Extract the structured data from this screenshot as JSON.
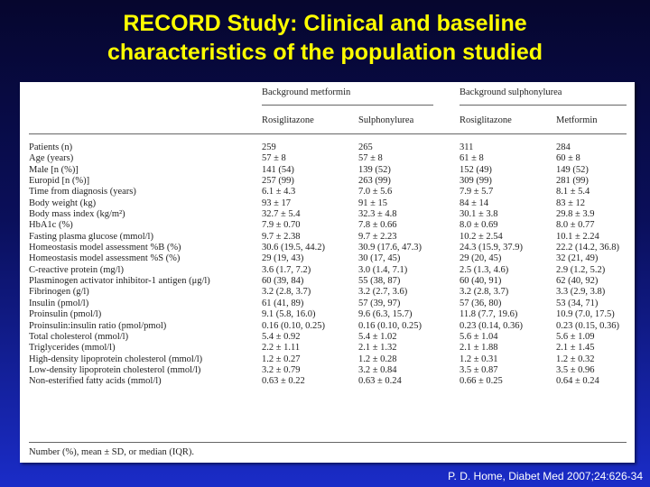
{
  "title": {
    "line1": "RECORD Study:  Clinical and baseline",
    "line2": "characteristics of the population studied"
  },
  "table": {
    "group_headers": [
      "Background metformin",
      "Background sulphonylurea"
    ],
    "column_headers": [
      "Rosiglitazone",
      "Sulphonylurea",
      "Rosiglitazone",
      "Metformin"
    ],
    "rows": [
      [
        "Patients (n)",
        "259",
        "265",
        "311",
        "284"
      ],
      [
        "Age (years)",
        "57 ± 8",
        "57 ± 8",
        "61 ± 8",
        "60 ± 8"
      ],
      [
        "Male [n (%)]",
        "141 (54)",
        "139 (52)",
        "152 (49)",
        "149 (52)"
      ],
      [
        "Europid [n (%)]",
        "257 (99)",
        "263 (99)",
        "309 (99)",
        "281 (99)"
      ],
      [
        "Time from diagnosis (years)",
        "6.1 ± 4.3",
        "7.0 ± 5.6",
        "7.9 ± 5.7",
        "8.1 ± 5.4"
      ],
      [
        "Body weight (kg)",
        "93 ± 17",
        "91 ± 15",
        "84 ± 14",
        "83 ± 12"
      ],
      [
        "Body mass index (kg/m²)",
        "32.7 ± 5.4",
        "32.3 ± 4.8",
        "30.1 ± 3.8",
        "29.8 ± 3.9"
      ],
      [
        "HbA1c (%)",
        "7.9 ± 0.70",
        "7.8 ± 0.66",
        "8.0 ± 0.69",
        "8.0 ± 0.77"
      ],
      [
        "Fasting plasma glucose (mmol/l)",
        "9.7 ± 2.38",
        "9.7 ± 2.23",
        "10.2 ± 2.54",
        "10.1 ± 2.24"
      ],
      [
        "Homeostasis model assessment %B (%)",
        "30.6 (19.5, 44.2)",
        "30.9 (17.6, 47.3)",
        "24.3 (15.9, 37.9)",
        "22.2 (14.2, 36.8)"
      ],
      [
        "Homeostasis model assessment %S (%)",
        "29 (19, 43)",
        "30 (17, 45)",
        "29 (20, 45)",
        "32 (21, 49)"
      ],
      [
        "C-reactive protein (mg/l)",
        "3.6 (1.7, 7.2)",
        "3.0 (1.4, 7.1)",
        "2.5 (1.3, 4.6)",
        "2.9 (1.2, 5.2)"
      ],
      [
        "Plasminogen activator inhibitor-1 antigen (μg/l)",
        "60 (39, 84)",
        "55 (38, 87)",
        "60 (40, 91)",
        "62 (40, 92)"
      ],
      [
        "Fibrinogen (g/l)",
        "3.2 (2.8, 3.7)",
        "3.2 (2.7, 3.6)",
        "3.2 (2.8, 3.7)",
        "3.3 (2.9, 3.8)"
      ],
      [
        "Insulin (pmol/l)",
        "61 (41, 89)",
        "57 (39, 97)",
        "57 (36, 80)",
        "53 (34, 71)"
      ],
      [
        "Proinsulin (pmol/l)",
        "9.1 (5.8, 16.0)",
        "9.6 (6.3, 15.7)",
        "11.8 (7.7, 19.6)",
        "10.9 (7.0, 17.5)"
      ],
      [
        "Proinsulin:insulin ratio (pmol/pmol)",
        "0.16 (0.10, 0.25)",
        "0.16 (0.10, 0.25)",
        "0.23 (0.14, 0.36)",
        "0.23 (0.15, 0.36)"
      ],
      [
        "Total cholesterol (mmol/l)",
        "5.4 ± 0.92",
        "5.4 ± 1.02",
        "5.6 ± 1.04",
        "5.6 ± 1.09"
      ],
      [
        "Triglycerides (mmol/l)",
        "2.2 ± 1.11",
        "2.1 ± 1.32",
        "2.1 ± 1.88",
        "2.1 ± 1.45"
      ],
      [
        "High-density lipoprotein cholesterol (mmol/l)",
        "1.2 ± 0.27",
        "1.2 ± 0.28",
        "1.2 ± 0.31",
        "1.2 ± 0.32"
      ],
      [
        "Low-density lipoprotein cholesterol (mmol/l)",
        "3.2 ± 0.79",
        "3.2 ± 0.84",
        "3.5 ± 0.87",
        "3.5 ± 0.96"
      ],
      [
        "Non-esterified fatty acids (mmol/l)",
        "0.63 ± 0.22",
        "0.63 ± 0.24",
        "0.66 ± 0.25",
        "0.64 ± 0.24"
      ]
    ],
    "footnote": "Number (%), mean ± SD, or median (IQR)."
  },
  "citation": "P. D. Home, Diabet Med 2007;24:626-34",
  "colors": {
    "title": "#ffff00",
    "background_top": "#06062e",
    "background_bottom": "#1a2cc8",
    "panel": "#ffffff",
    "citation": "#ffffff"
  }
}
